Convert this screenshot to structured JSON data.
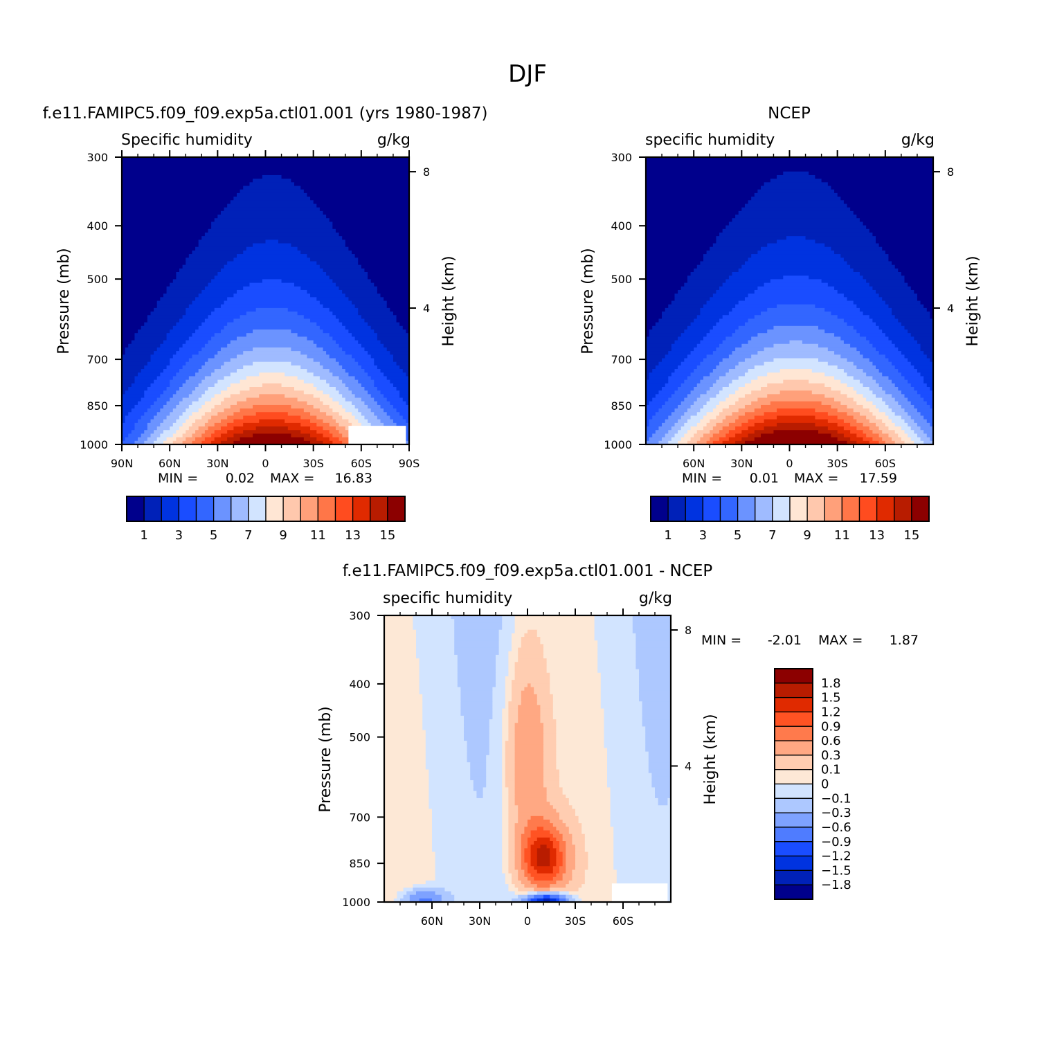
{
  "figure": {
    "title": "DJF"
  },
  "palette": {
    "main": [
      "#00008c",
      "#0021b8",
      "#0033e0",
      "#1a4dff",
      "#3366ff",
      "#6b93ff",
      "#9fbbff",
      "#d2e4ff",
      "#ffe6d4",
      "#ffc8ad",
      "#ffa07a",
      "#ff7648",
      "#ff4c1f",
      "#e02a00",
      "#b81c00",
      "#8c0000"
    ],
    "diff": [
      "#00008c",
      "#0021b8",
      "#0033e0",
      "#1a4dff",
      "#4f7cff",
      "#7ea2ff",
      "#adc8ff",
      "#d2e4ff",
      "#fde8d6",
      "#ffcdb1",
      "#ffa883",
      "#ff7a4c",
      "#ff5323",
      "#e02a00",
      "#b81c00",
      "#8c0000"
    ]
  },
  "chart_data": [
    {
      "type": "heatmap",
      "title": "f.e11.FAMIPC5.f09_f09.exp5a.ctl01.001 (yrs 1980-1987)",
      "left_label": "Specific humidity",
      "right_label": "g/kg",
      "ylabel": "Pressure (mb)",
      "ylabel2": "Height (km)",
      "x_ticks": [
        "90N",
        "60N",
        "30N",
        "0",
        "30S",
        "60S",
        "90S"
      ],
      "x_values": [
        -90,
        -60,
        -30,
        0,
        30,
        60,
        90
      ],
      "xlim": [
        -90,
        90
      ],
      "y_ticks": [
        "300",
        "400",
        "500",
        "700",
        "850",
        "1000"
      ],
      "y_values": [
        300,
        400,
        500,
        700,
        850,
        1000
      ],
      "ylim": [
        300,
        1000
      ],
      "y2_ticks": [
        "8",
        "4"
      ],
      "y2_values": [
        8,
        4
      ],
      "stats": {
        "min_label": "MIN =",
        "min": "0.02",
        "max_label": "MAX =",
        "max": "16.83"
      },
      "colorbar": {
        "orientation": "horizontal",
        "labels": [
          "1",
          "3",
          "5",
          "7",
          "9",
          "11",
          "13",
          "15"
        ],
        "levels": [
          1,
          3,
          5,
          7,
          9,
          11,
          13,
          15
        ]
      },
      "field": {
        "max": 16.83,
        "peak_lat": 4,
        "base_width": 50,
        "height_scale": 2.4,
        "missing_box": [
          [
            52,
            88
          ],
          [
            925,
            1000
          ]
        ]
      }
    },
    {
      "type": "heatmap",
      "title": "NCEP",
      "left_label": "specific humidity",
      "right_label": "g/kg",
      "ylabel": "Pressure (mb)",
      "ylabel2": "Height (km)",
      "x_ticks": [
        "60N",
        "30N",
        "0",
        "30S",
        "60S"
      ],
      "x_values": [
        -60,
        -30,
        0,
        30,
        60
      ],
      "xlim": [
        -90,
        90
      ],
      "y_ticks": [
        "300",
        "400",
        "500",
        "700",
        "850",
        "1000"
      ],
      "y_values": [
        300,
        400,
        500,
        700,
        850,
        1000
      ],
      "ylim": [
        300,
        1000
      ],
      "y2_ticks": [
        "8",
        "4"
      ],
      "y2_values": [
        8,
        4
      ],
      "stats": {
        "min_label": "MIN =",
        "min": "0.01",
        "max_label": "MAX =",
        "max": "17.59"
      },
      "colorbar": {
        "orientation": "horizontal",
        "labels": [
          "1",
          "3",
          "5",
          "7",
          "9",
          "11",
          "13",
          "15"
        ],
        "levels": [
          1,
          3,
          5,
          7,
          9,
          11,
          13,
          15
        ]
      },
      "field": {
        "max": 17.59,
        "peak_lat": 4,
        "base_width": 54,
        "height_scale": 2.5,
        "missing_box": null
      }
    },
    {
      "type": "heatmap",
      "title": "f.e11.FAMIPC5.f09_f09.exp5a.ctl01.001 - NCEP",
      "left_label": "specific humidity",
      "right_label": "g/kg",
      "ylabel": "Pressure (mb)",
      "ylabel2": "Height (km)",
      "x_ticks": [
        "60N",
        "30N",
        "0",
        "30S",
        "60S"
      ],
      "x_values": [
        -60,
        -30,
        0,
        30,
        60
      ],
      "xlim": [
        -90,
        90
      ],
      "y_ticks": [
        "300",
        "400",
        "500",
        "700",
        "850",
        "1000"
      ],
      "y_values": [
        300,
        400,
        500,
        700,
        850,
        1000
      ],
      "ylim": [
        300,
        1000
      ],
      "y2_ticks": [
        "8",
        "4"
      ],
      "y2_values": [
        8,
        4
      ],
      "stats": {
        "min_label": "MIN =",
        "min": "-2.01",
        "max_label": "MAX =",
        "max": "1.87"
      },
      "colorbar": {
        "orientation": "vertical",
        "labels": [
          "1.8",
          "1.5",
          "1.2",
          "0.9",
          "0.6",
          "0.3",
          "0.1",
          "0",
          "-0.1",
          "-0.3",
          "-0.6",
          "-0.9",
          "-1.2",
          "-1.5",
          "-1.8"
        ],
        "levels": [
          1.8,
          1.5,
          1.2,
          0.9,
          0.6,
          0.3,
          0.1,
          0,
          -0.1,
          -0.3,
          -0.6,
          -0.9,
          -1.2,
          -1.5,
          -1.8
        ]
      },
      "field": {
        "missing_box": [
          [
            53,
            88
          ],
          [
            925,
            1000
          ]
        ]
      }
    }
  ]
}
